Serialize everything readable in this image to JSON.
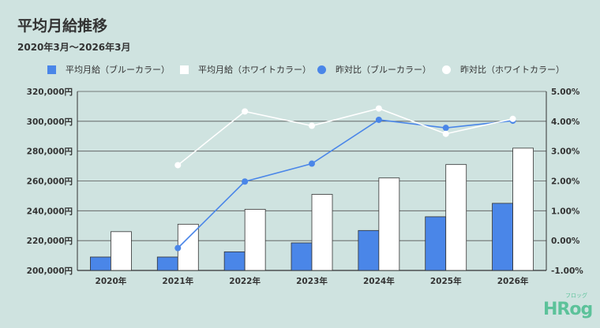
{
  "chart_data": {
    "type": "bar",
    "title": "平均月給推移",
    "subtitle": "2020年3月～2026年3月",
    "categories": [
      "2020年",
      "2021年",
      "2022年",
      "2023年",
      "2024年",
      "2025年",
      "2026年"
    ],
    "series": [
      {
        "name": "平均月給（ブルーカラー）",
        "kind": "bar",
        "axis": "left",
        "color": "#4a86e8",
        "values": [
          209000,
          209000,
          212500,
          218500,
          226800,
          236000,
          245000
        ]
      },
      {
        "name": "平均月給（ホワイトカラー）",
        "kind": "bar",
        "axis": "left",
        "color": "#ffffff",
        "values": [
          226000,
          231000,
          241000,
          251000,
          262000,
          271000,
          282000
        ]
      },
      {
        "name": "昨対比（ブルーカラー）",
        "kind": "line",
        "axis": "right",
        "color": "#4a86e8",
        "values": [
          null,
          -0.25,
          1.98,
          2.58,
          4.05,
          3.78,
          4.02
        ]
      },
      {
        "name": "昨対比（ホワイトカラー）",
        "kind": "line",
        "axis": "right",
        "color": "#ffffff",
        "values": [
          null,
          2.53,
          4.33,
          3.85,
          4.43,
          3.58,
          4.08
        ]
      }
    ],
    "y_left": {
      "min": 200000,
      "max": 320000,
      "step": 20000,
      "ticks": [
        "200,000円",
        "220,000円",
        "240,000円",
        "260,000円",
        "280,000円",
        "300,000円",
        "320,000円"
      ]
    },
    "y_right": {
      "min": -1.0,
      "max": 5.0,
      "step": 1.0,
      "ticks": [
        "-1.00%",
        "0.00%",
        "1.00%",
        "2.00%",
        "3.00%",
        "4.00%",
        "5.00%"
      ]
    },
    "grid": true,
    "legend_position": "top"
  },
  "brand": {
    "logo": "HRog",
    "logo_kana": "フロッグ"
  }
}
